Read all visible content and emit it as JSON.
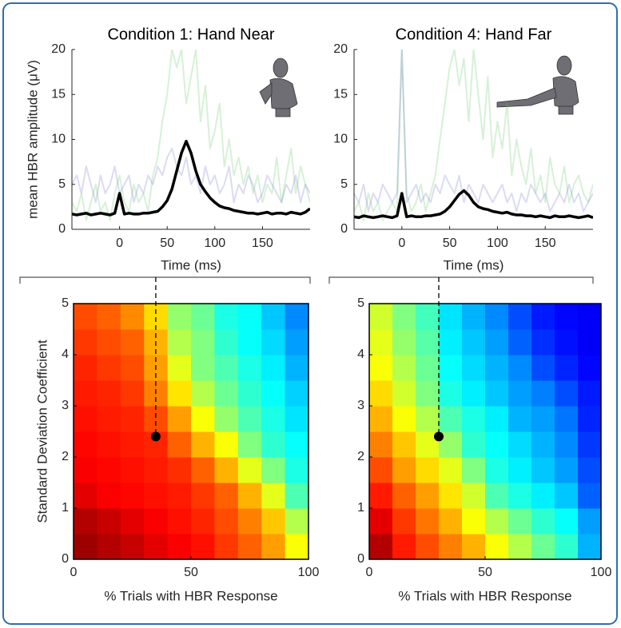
{
  "chart_data": [
    {
      "type": "line",
      "title": "Condition 1: Hand Near",
      "xlabel": "Time (ms)",
      "ylabel": "mean HBR amplitude (μV)",
      "xlim": [
        -50,
        200
      ],
      "ylim": [
        0,
        20
      ],
      "xticks": [
        0,
        50,
        100,
        150
      ],
      "yticks": [
        0,
        5,
        10,
        15,
        20
      ],
      "x": [
        -50,
        -45,
        -40,
        -35,
        -30,
        -25,
        -20,
        -15,
        -10,
        -5,
        0,
        5,
        10,
        15,
        20,
        25,
        30,
        35,
        40,
        45,
        50,
        55,
        60,
        65,
        70,
        75,
        80,
        85,
        90,
        95,
        100,
        105,
        110,
        115,
        120,
        125,
        130,
        135,
        140,
        145,
        150,
        155,
        160,
        165,
        170,
        175,
        180,
        185,
        190,
        195,
        200
      ],
      "series": [
        {
          "color": "#5cc85c",
          "opacity": 0.25,
          "values": [
            3,
            2,
            4,
            1,
            3,
            5,
            2,
            3,
            1,
            4,
            6,
            3,
            2,
            5,
            3,
            4,
            2,
            6,
            8,
            12,
            15,
            20,
            18,
            20,
            14,
            17,
            20,
            12,
            16,
            9,
            11,
            14,
            7,
            10,
            6,
            8,
            5,
            7,
            4,
            6,
            3,
            5,
            4,
            8,
            3,
            6,
            9,
            4,
            7,
            5,
            3
          ]
        },
        {
          "color": "#6f6fd0",
          "opacity": 0.25,
          "values": [
            5,
            6,
            4,
            7,
            5,
            3,
            6,
            4,
            5,
            7,
            4,
            5,
            6,
            3,
            5,
            4,
            6,
            5,
            7,
            6,
            8,
            9,
            7,
            6,
            8,
            5,
            6,
            4,
            7,
            5,
            6,
            4,
            5,
            7,
            3,
            5,
            4,
            6,
            5,
            3,
            4,
            6,
            5,
            4,
            3,
            5,
            4,
            6,
            3,
            5,
            4
          ]
        },
        {
          "color": "#000000",
          "opacity": 1,
          "values": [
            1.7,
            1.6,
            1.7,
            1.8,
            1.6,
            1.7,
            1.8,
            1.7,
            1.6,
            1.8,
            4.0,
            1.7,
            1.8,
            1.7,
            1.7,
            1.8,
            1.8,
            1.9,
            2.0,
            2.5,
            3.2,
            4.5,
            6.5,
            8.5,
            9.8,
            8.5,
            6.5,
            5,
            4.2,
            3.5,
            3,
            2.6,
            2.4,
            2.3,
            2.1,
            2.0,
            1.9,
            1.8,
            1.8,
            1.7,
            1.8,
            1.9,
            1.7,
            1.8,
            1.8,
            1.7,
            1.9,
            1.8,
            1.7,
            1.9,
            2.3
          ]
        }
      ]
    },
    {
      "type": "line",
      "title": "Condition 4: Hand Far",
      "xlabel": "Time (ms)",
      "xlim": [
        -50,
        200
      ],
      "ylim": [
        0,
        20
      ],
      "xticks": [
        0,
        50,
        100,
        150
      ],
      "yticks": [
        0,
        5,
        10,
        15,
        20
      ],
      "x": [
        -50,
        -45,
        -40,
        -35,
        -30,
        -25,
        -20,
        -15,
        -10,
        -5,
        0,
        5,
        10,
        15,
        20,
        25,
        30,
        35,
        40,
        45,
        50,
        55,
        60,
        65,
        70,
        75,
        80,
        85,
        90,
        95,
        100,
        105,
        110,
        115,
        120,
        125,
        130,
        135,
        140,
        145,
        150,
        155,
        160,
        165,
        170,
        175,
        180,
        185,
        190,
        195,
        200
      ],
      "series": [
        {
          "color": "#5cc85c",
          "opacity": 0.25,
          "values": [
            2,
            3,
            1,
            4,
            2,
            3,
            1,
            2,
            3,
            2,
            20,
            4,
            2,
            3,
            5,
            2,
            4,
            6,
            10,
            14,
            18,
            20,
            16,
            19,
            12,
            20,
            15,
            10,
            17,
            8,
            12,
            9,
            14,
            6,
            10,
            7,
            5,
            9,
            4,
            6,
            3,
            8,
            5,
            4,
            7,
            3,
            5,
            6,
            4,
            3,
            5
          ]
        },
        {
          "color": "#6f6fd0",
          "opacity": 0.25,
          "values": [
            4,
            3,
            5,
            2,
            4,
            3,
            5,
            4,
            3,
            4,
            20,
            3,
            4,
            5,
            3,
            4,
            3,
            5,
            4,
            6,
            5,
            4,
            6,
            3,
            5,
            4,
            3,
            5,
            4,
            3,
            4,
            5,
            3,
            4,
            2,
            4,
            3,
            5,
            4,
            3,
            4,
            2,
            3,
            4,
            3,
            5,
            3,
            4,
            2,
            3,
            4
          ]
        },
        {
          "color": "#000000",
          "opacity": 1,
          "values": [
            1.4,
            1.3,
            1.5,
            1.4,
            1.3,
            1.4,
            1.5,
            1.4,
            1.3,
            1.5,
            4.0,
            1.4,
            1.5,
            1.4,
            1.4,
            1.5,
            1.5,
            1.6,
            1.7,
            2.0,
            2.5,
            3.2,
            3.9,
            4.3,
            3.8,
            3.0,
            2.5,
            2.3,
            2.2,
            2.0,
            1.9,
            1.8,
            1.9,
            1.7,
            1.6,
            1.6,
            1.5,
            1.5,
            1.4,
            1.5,
            1.4,
            1.3,
            1.5,
            1.4,
            1.4,
            1.5,
            1.4,
            1.3,
            1.4,
            1.5,
            1.3
          ]
        }
      ]
    },
    {
      "type": "heatmap",
      "xlabel": "% Trials with HBR Response",
      "ylabel": "Standard Deviation Coefficient",
      "xlim": [
        0,
        100
      ],
      "ylim": [
        0,
        5
      ],
      "xticks": [
        0,
        50,
        100
      ],
      "yticks": [
        0,
        1,
        2,
        3,
        4,
        5
      ],
      "colormap": "jet",
      "marker": {
        "x": 35,
        "y": 2.4
      },
      "z": [
        [
          0.97,
          0.95,
          0.93,
          0.9,
          0.88,
          0.86,
          0.82,
          0.78,
          0.72,
          0.62
        ],
        [
          0.95,
          0.93,
          0.9,
          0.88,
          0.86,
          0.84,
          0.8,
          0.75,
          0.68,
          0.55
        ],
        [
          0.9,
          0.88,
          0.87,
          0.86,
          0.85,
          0.82,
          0.78,
          0.7,
          0.6,
          0.45
        ],
        [
          0.88,
          0.87,
          0.86,
          0.85,
          0.83,
          0.78,
          0.7,
          0.6,
          0.5,
          0.4
        ],
        [
          0.87,
          0.86,
          0.85,
          0.84,
          0.78,
          0.7,
          0.62,
          0.5,
          0.42,
          0.38
        ],
        [
          0.86,
          0.85,
          0.84,
          0.8,
          0.72,
          0.62,
          0.52,
          0.45,
          0.4,
          0.35
        ],
        [
          0.85,
          0.84,
          0.82,
          0.75,
          0.65,
          0.55,
          0.48,
          0.42,
          0.38,
          0.33
        ],
        [
          0.84,
          0.82,
          0.8,
          0.72,
          0.6,
          0.5,
          0.45,
          0.4,
          0.36,
          0.3
        ],
        [
          0.82,
          0.8,
          0.78,
          0.7,
          0.55,
          0.5,
          0.42,
          0.38,
          0.34,
          0.28
        ],
        [
          0.8,
          0.78,
          0.74,
          0.66,
          0.52,
          0.48,
          0.4,
          0.38,
          0.32,
          0.26
        ]
      ]
    },
    {
      "type": "heatmap",
      "xlabel": "% Trials with HBR Response",
      "xlim": [
        0,
        100
      ],
      "ylim": [
        0,
        5
      ],
      "xticks": [
        0,
        50,
        100
      ],
      "yticks": [
        0,
        1,
        2,
        3,
        4,
        5
      ],
      "colormap": "jet",
      "marker": {
        "x": 30,
        "y": 2.4
      },
      "z": [
        [
          0.95,
          0.85,
          0.8,
          0.75,
          0.7,
          0.62,
          0.55,
          0.48,
          0.42,
          0.3
        ],
        [
          0.9,
          0.82,
          0.76,
          0.7,
          0.62,
          0.55,
          0.48,
          0.42,
          0.38,
          0.28
        ],
        [
          0.85,
          0.78,
          0.72,
          0.65,
          0.58,
          0.45,
          0.4,
          0.36,
          0.32,
          0.22
        ],
        [
          0.8,
          0.72,
          0.66,
          0.6,
          0.5,
          0.4,
          0.36,
          0.32,
          0.28,
          0.2
        ],
        [
          0.75,
          0.68,
          0.6,
          0.52,
          0.42,
          0.38,
          0.34,
          0.3,
          0.26,
          0.18
        ],
        [
          0.7,
          0.62,
          0.55,
          0.45,
          0.4,
          0.36,
          0.3,
          0.28,
          0.24,
          0.16
        ],
        [
          0.66,
          0.58,
          0.5,
          0.4,
          0.36,
          0.32,
          0.28,
          0.25,
          0.2,
          0.15
        ],
        [
          0.62,
          0.55,
          0.48,
          0.38,
          0.34,
          0.3,
          0.26,
          0.2,
          0.16,
          0.13
        ],
        [
          0.6,
          0.52,
          0.46,
          0.36,
          0.32,
          0.28,
          0.22,
          0.17,
          0.14,
          0.12
        ],
        [
          0.58,
          0.5,
          0.44,
          0.35,
          0.3,
          0.26,
          0.2,
          0.15,
          0.13,
          0.12
        ]
      ]
    }
  ]
}
